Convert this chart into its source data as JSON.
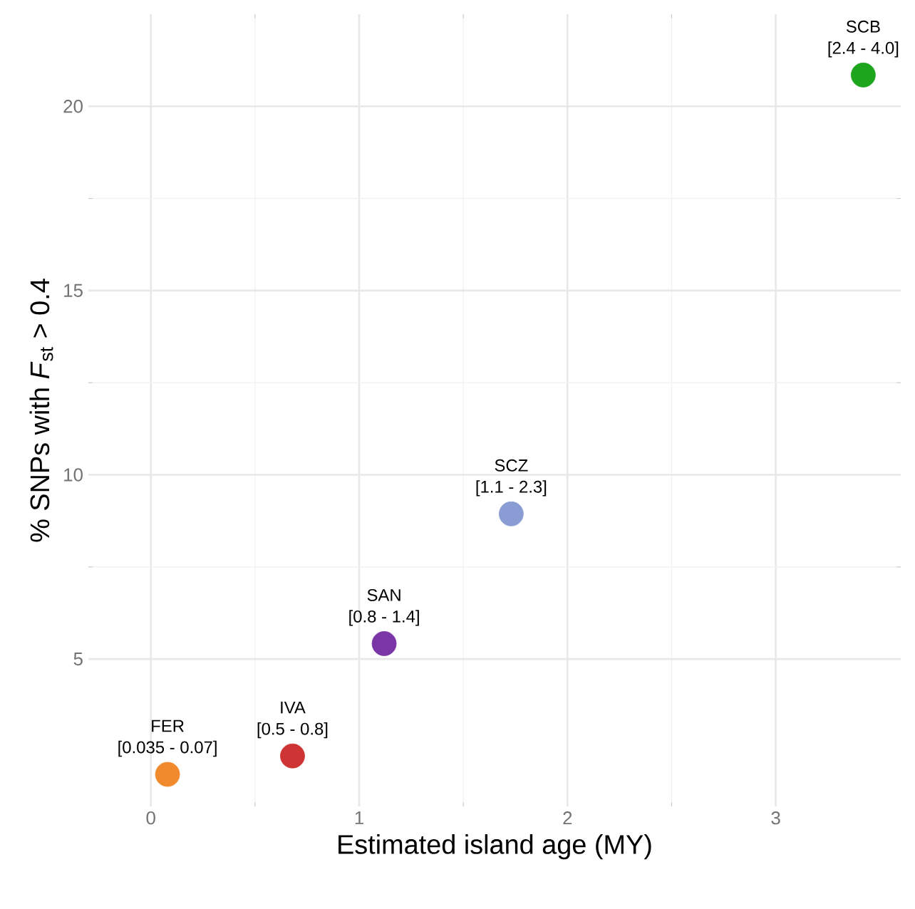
{
  "chart_data": {
    "type": "scatter",
    "xlabel": "Estimated island age (MY)",
    "ylabel": "% SNPs with *F*$_{st}$ > 0.4",
    "x": [
      0.08,
      0.68,
      1.12,
      1.73,
      3.42
    ],
    "values": [
      1.87,
      2.37,
      5.42,
      8.94,
      20.85
    ],
    "colors": [
      "#f08a2c",
      "#cf3434",
      "#7a35a6",
      "#8a9cd4",
      "#1ea51e"
    ],
    "xlim": [
      -0.3,
      3.6
    ],
    "ylim": [
      1.0,
      22.5
    ],
    "xticks": [
      0,
      1,
      2,
      3
    ],
    "yticks": [
      5,
      10,
      15,
      20
    ],
    "grid": true,
    "annotations": [
      {
        "text": "FER",
        "x": 0.08,
        "y": 1.87
      },
      {
        "text": "[0.035 - 0.07]",
        "x": 0.08,
        "y": 1.87
      },
      {
        "text": "IVA",
        "x": 0.68,
        "y": 2.37
      },
      {
        "text": "[0.5 - 0.8]",
        "x": 0.68,
        "y": 2.37
      },
      {
        "text": "SAN",
        "x": 1.12,
        "y": 5.42
      },
      {
        "text": "[0.8 - 1.4]",
        "x": 1.12,
        "y": 5.42
      },
      {
        "text": "SCZ",
        "x": 1.73,
        "y": 8.94
      },
      {
        "text": "[1.1 - 2.3]",
        "x": 1.73,
        "y": 8.94
      },
      {
        "text": "SCB",
        "x": 3.42,
        "y": 20.85
      },
      {
        "text": "[2.4 - 4.0]",
        "x": 3.42,
        "y": 20.85
      }
    ]
  }
}
